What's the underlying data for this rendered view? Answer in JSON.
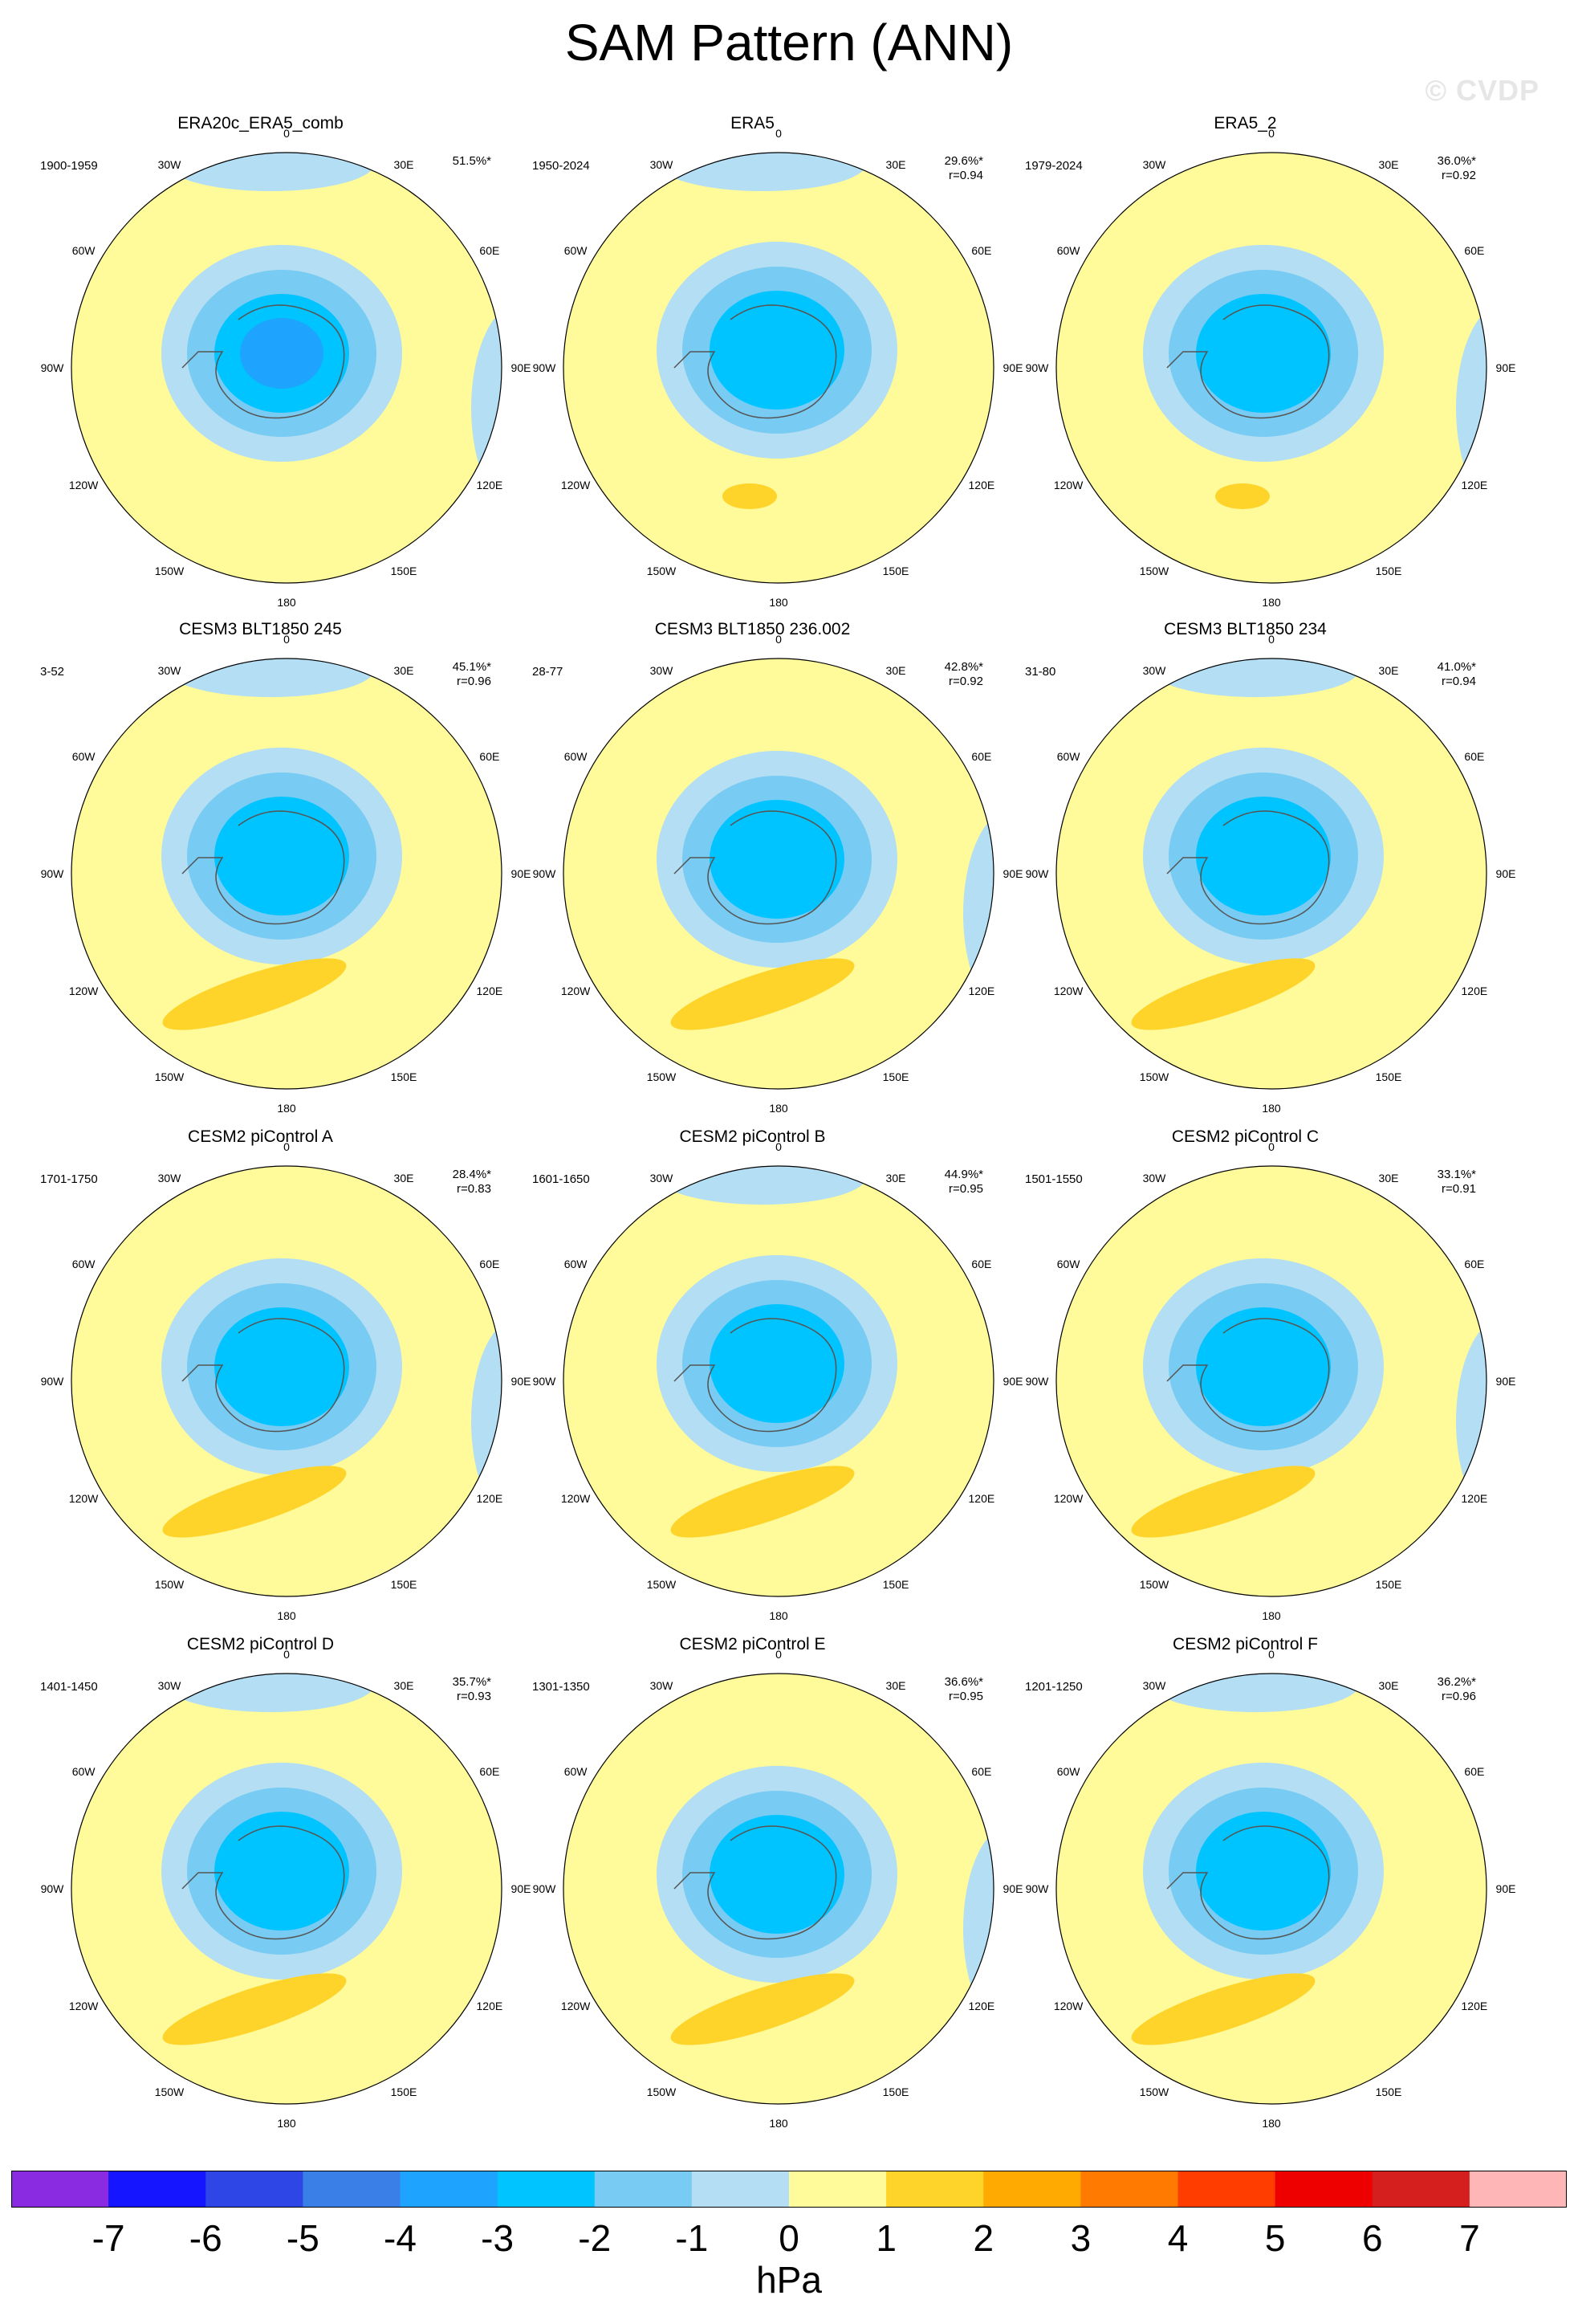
{
  "title": "SAM Pattern (ANN)",
  "watermark": "© CVDP",
  "chart_data": {
    "type": "heatmap",
    "projection": "south polar stereographic",
    "variable": "SAM pattern",
    "longitude_labels": [
      "0",
      "30E",
      "60E",
      "90E",
      "120E",
      "150E",
      "180",
      "150W",
      "120W",
      "90W",
      "60W",
      "30W"
    ],
    "colorbar": {
      "unit": "hPa",
      "ticks": [
        "-7",
        "-6",
        "-5",
        "-4",
        "-3",
        "-2",
        "-1",
        "0",
        "1",
        "2",
        "3",
        "4",
        "5",
        "6",
        "7"
      ],
      "colors": [
        "#8a2be2",
        "#1515ff",
        "#2f46e6",
        "#3a7fe8",
        "#1ea3ff",
        "#00c4ff",
        "#78cbf2",
        "#b3def3",
        "#fffa9a",
        "#ffd42a",
        "#ffaa00",
        "#ff7a00",
        "#ff3d00",
        "#ee0000",
        "#d51e1e",
        "#ffb6b6"
      ]
    },
    "panels": [
      {
        "title": "ERA20c_ERA5_comb",
        "period": "1900-1959",
        "pct": "51.5%*",
        "r": "",
        "variant": 1,
        "min_level": -4
      },
      {
        "title": "ERA5",
        "period": "1950-2024",
        "pct": "29.6%*",
        "r": "r=0.94",
        "variant": 2,
        "min_level": -3
      },
      {
        "title": "ERA5_2",
        "period": "1979-2024",
        "pct": "36.0%*",
        "r": "r=0.92",
        "variant": 3,
        "min_level": -3
      },
      {
        "title": "CESM3 BLT1850 245",
        "period": "3-52",
        "pct": "45.1%*",
        "r": "r=0.96",
        "variant": 4,
        "min_level": -3
      },
      {
        "title": "CESM3 BLT1850 236.002",
        "period": "28-77",
        "pct": "42.8%*",
        "r": "r=0.92",
        "variant": 5,
        "min_level": -3
      },
      {
        "title": "CESM3 BLT1850 234",
        "period": "31-80",
        "pct": "41.0%*",
        "r": "r=0.94",
        "variant": 6,
        "min_level": -3
      },
      {
        "title": "CESM2 piControl A",
        "period": "1701-1750",
        "pct": "28.4%*",
        "r": "r=0.83",
        "variant": 7,
        "min_level": -3
      },
      {
        "title": "CESM2 piControl B",
        "period": "1601-1650",
        "pct": "44.9%*",
        "r": "r=0.95",
        "variant": 8,
        "min_level": -3
      },
      {
        "title": "CESM2 piControl C",
        "period": "1501-1550",
        "pct": "33.1%*",
        "r": "r=0.91",
        "variant": 9,
        "min_level": -3
      },
      {
        "title": "CESM2 piControl D",
        "period": "1401-1450",
        "pct": "35.7%*",
        "r": "r=0.93",
        "variant": 10,
        "min_level": -3
      },
      {
        "title": "CESM2 piControl E",
        "period": "1301-1350",
        "pct": "36.6%*",
        "r": "r=0.95",
        "variant": 11,
        "min_level": -3
      },
      {
        "title": "CESM2 piControl F",
        "period": "1201-1250",
        "pct": "36.2%*",
        "r": "r=0.96",
        "variant": 12,
        "min_level": -3
      }
    ]
  }
}
